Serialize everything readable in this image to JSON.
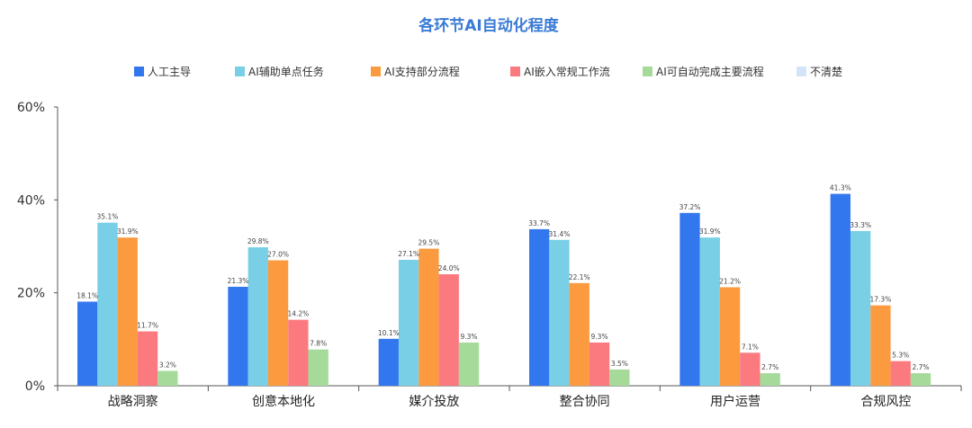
{
  "chart_data": {
    "type": "bar",
    "title": "各环节AI自动化程度",
    "categories": [
      "战略洞察",
      "创意本地化",
      "媒介投放",
      "整合协同",
      "用户运营",
      "合规风控"
    ],
    "series": [
      {
        "name": "人工主导",
        "color": "#3377ee",
        "values": [
          18.1,
          21.3,
          10.1,
          33.7,
          37.2,
          41.3
        ],
        "labels": [
          "18.1%",
          "21.3%",
          "10.1%",
          "33.7%",
          "37.2%",
          "41.3%"
        ]
      },
      {
        "name": "AI辅助单点任务",
        "color": "#78cfe6",
        "values": [
          35.1,
          29.8,
          27.1,
          31.4,
          31.9,
          33.3
        ],
        "labels": [
          "35.1%",
          "29.8%",
          "27.1%",
          "31.4%",
          "31.9%",
          "33.3%"
        ]
      },
      {
        "name": "AI支持部分流程",
        "color": "#fb9a3f",
        "values": [
          31.9,
          27.0,
          29.5,
          22.1,
          21.2,
          17.3
        ],
        "labels": [
          "31.9%",
          "27.0%",
          "29.5%",
          "22.1%",
          "21.2%",
          "17.3%"
        ]
      },
      {
        "name": "AI嵌入常规工作流",
        "color": "#fb7a80",
        "values": [
          11.7,
          14.2,
          24.0,
          9.3,
          7.1,
          5.3
        ],
        "labels": [
          "11.7%",
          "14.2%",
          "24.0%",
          "9.3%",
          "7.1%",
          "5.3%"
        ]
      },
      {
        "name": "AI可自动完成主要流程",
        "color": "#a6da9a",
        "values": [
          3.2,
          7.8,
          9.3,
          3.5,
          2.7,
          2.7
        ],
        "labels": [
          "3.2%",
          "7.8%",
          "9.3%",
          "3.5%",
          "2.7%",
          "2.7%"
        ]
      },
      {
        "name": "不清楚",
        "color": "#d4e4f7",
        "values": [
          0,
          0,
          0,
          0,
          0,
          0
        ],
        "labels": [
          "",
          "",
          "",
          "",
          "",
          ""
        ]
      }
    ],
    "ylim": [
      0,
      60
    ],
    "yticks": [
      0,
      20,
      40,
      60
    ],
    "ytick_labels": [
      "0%",
      "20%",
      "40%",
      "60%"
    ],
    "legend_position": "top",
    "grid": false
  }
}
